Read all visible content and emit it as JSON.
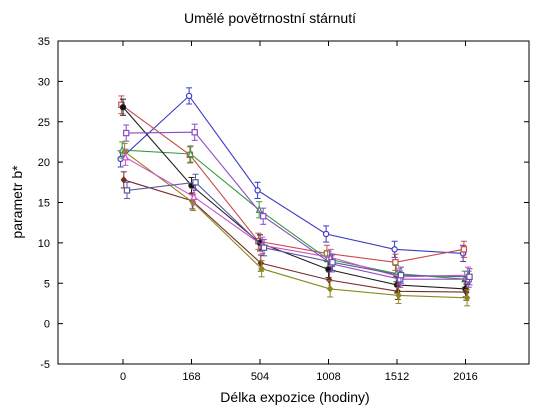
{
  "chart_data": {
    "type": "line",
    "title": "Umělé povětrnostní stárnutí",
    "xlabel": "Délka expozice (hodiny)",
    "ylabel": "parametr b*",
    "categories": [
      "0",
      "168",
      "504",
      "1008",
      "1512",
      "2016"
    ],
    "ylim": [
      -5,
      35
    ],
    "yticks": [
      "35",
      "30",
      "25",
      "20",
      "15",
      "10",
      "5",
      "0",
      "-5"
    ],
    "grid": false,
    "legend": "none",
    "series": [
      {
        "color": "#3a3ac8",
        "marker": "circle",
        "offset": -0.3,
        "values": [
          20.4,
          28.2,
          16.5,
          11.1,
          9.2,
          8.7
        ],
        "errors": [
          1.0,
          1.0,
          1.0,
          1.0,
          1.0,
          1.0
        ]
      },
      {
        "color": "#c84a4a",
        "marker": "square",
        "offset": -0.2,
        "values": [
          27.1,
          20.9,
          10.2,
          8.7,
          7.6,
          9.2
        ],
        "errors": [
          1.1,
          1.0,
          1.0,
          1.0,
          1.0,
          1.0
        ]
      },
      {
        "color": "#3a9a3a",
        "marker": "triangle",
        "offset": -0.1,
        "values": [
          21.5,
          21.0,
          14.1,
          8.0,
          6.2,
          5.5
        ],
        "errors": [
          1.0,
          1.0,
          1.0,
          1.0,
          1.0,
          1.0
        ]
      },
      {
        "color": "#222222",
        "marker": "circle",
        "offset": 0.0,
        "values": [
          26.8,
          17.1,
          10.0,
          6.7,
          4.8,
          4.3
        ],
        "errors": [
          1.0,
          1.0,
          1.0,
          1.0,
          1.0,
          1.0
        ]
      },
      {
        "color": "#7a2a2a",
        "marker": "diamond",
        "offset": 0.1,
        "values": [
          17.8,
          15.2,
          7.5,
          5.4,
          4.0,
          3.9
        ],
        "errors": [
          1.0,
          1.0,
          1.0,
          1.0,
          1.0,
          1.0
        ]
      },
      {
        "color": "#8a8a20",
        "marker": "diamond",
        "offset": 0.2,
        "values": [
          21.3,
          15.0,
          6.8,
          4.3,
          3.5,
          3.2
        ],
        "errors": [
          1.0,
          1.0,
          1.0,
          1.0,
          1.0,
          1.0
        ]
      },
      {
        "color": "#d050d0",
        "marker": "triangle",
        "offset": 0.3,
        "values": [
          20.6,
          15.7,
          9.7,
          8.2,
          5.8,
          6.0
        ],
        "errors": [
          1.0,
          1.0,
          1.0,
          1.0,
          1.0,
          1.0
        ]
      },
      {
        "color": "#8c4ac8",
        "marker": "square",
        "offset": 0.4,
        "values": [
          23.6,
          23.7,
          13.3,
          7.4,
          5.5,
          5.5
        ],
        "errors": [
          1.0,
          1.0,
          1.0,
          1.0,
          1.0,
          1.0
        ]
      },
      {
        "color": "#5a5aa0",
        "marker": "square",
        "offset": 0.5,
        "values": [
          16.5,
          17.5,
          9.4,
          7.6,
          6.0,
          5.8
        ],
        "errors": [
          1.0,
          1.0,
          1.0,
          1.0,
          1.0,
          1.0
        ]
      }
    ]
  }
}
